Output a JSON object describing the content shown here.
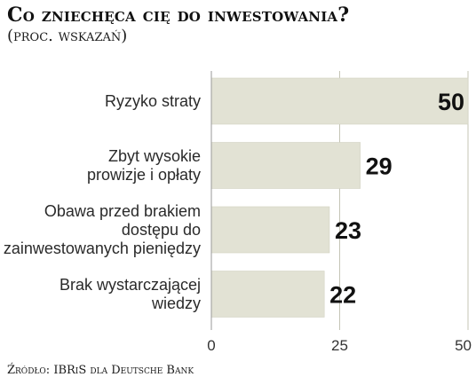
{
  "title": "Co zniechęca cię do inwestowania?",
  "subtitle": "(proc. wskazań)",
  "source": "Źródło: IBRiS dla Deutsche Bank",
  "colors": {
    "bar": "#e2e2d4",
    "bar_edge": "#d2d2c2",
    "grid": "#c4c4b6",
    "axis": "#999999"
  },
  "chart_data": {
    "type": "bar",
    "orientation": "horizontal",
    "categories": [
      [
        "Ryzyko straty"
      ],
      [
        "Zbyt wysokie",
        "prowizje i opłaty"
      ],
      [
        "Obawa przed brakiem",
        "dostępu do",
        "zainwestowanych pieniędzy"
      ],
      [
        "Brak wystarczającej",
        "wiedzy"
      ]
    ],
    "values": [
      50,
      29,
      23,
      22
    ],
    "xlim": [
      0,
      50
    ],
    "xticks": [
      0,
      25,
      50
    ],
    "grid": true
  }
}
